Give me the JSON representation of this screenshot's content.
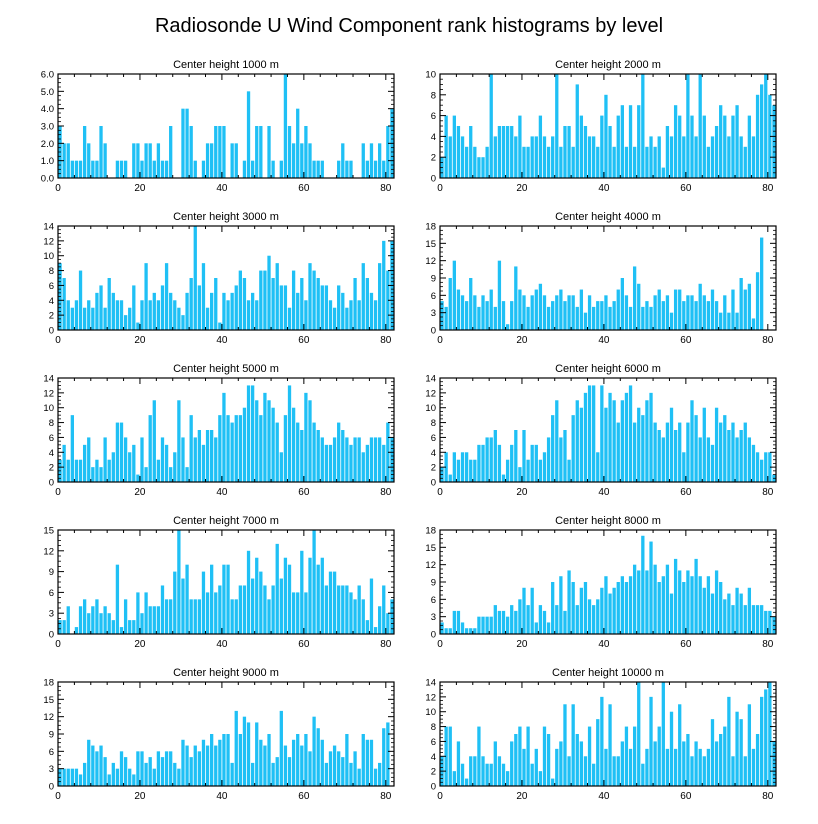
{
  "title": "Radiosonde U Wind Component rank histograms by level",
  "chart_data": [
    {
      "type": "bar",
      "title": "Center height 1000 m",
      "xlim": [
        0,
        82
      ],
      "ylim": [
        0,
        6
      ],
      "x_ticks": [
        0,
        20,
        40,
        60,
        80
      ],
      "y_ticks": [
        "0.0",
        "1.0",
        "2.0",
        "3.0",
        "4.0",
        "5.0",
        "6.0"
      ],
      "values": [
        3,
        2,
        2,
        1,
        1,
        1,
        3,
        2,
        1,
        1,
        3,
        2,
        0,
        0,
        1,
        1,
        1,
        0,
        2,
        2,
        1,
        2,
        2,
        1,
        2,
        1,
        1,
        3,
        0,
        0,
        4,
        4,
        3,
        1,
        0,
        1,
        2,
        2,
        3,
        3,
        3,
        0,
        2,
        2,
        0,
        1,
        5,
        1,
        3,
        3,
        0,
        3,
        1,
        0,
        1,
        6,
        3,
        2,
        4,
        2,
        3,
        2,
        1,
        1,
        1,
        0,
        0,
        0,
        1,
        2,
        1,
        1,
        0,
        0,
        2,
        1,
        2,
        1,
        2,
        1,
        3,
        4
      ]
    },
    {
      "type": "bar",
      "title": "Center height 2000 m",
      "xlim": [
        0,
        82
      ],
      "ylim": [
        0,
        10
      ],
      "x_ticks": [
        0,
        20,
        40,
        60,
        80
      ],
      "y_ticks": [
        "0",
        "2",
        "4",
        "6",
        "8",
        "10"
      ],
      "values": [
        2,
        6,
        4,
        6,
        5,
        4,
        3,
        5,
        3,
        2,
        2,
        3,
        10,
        4,
        5,
        5,
        5,
        5,
        4,
        6,
        3,
        3,
        4,
        4,
        6,
        4,
        3,
        4,
        10,
        3,
        5,
        5,
        3,
        9,
        6,
        5,
        4,
        4,
        3,
        6,
        8,
        5,
        3,
        6,
        7,
        3,
        7,
        3,
        7,
        10,
        3,
        4,
        3,
        4,
        1,
        5,
        4,
        7,
        6,
        4,
        10,
        6,
        4,
        10,
        6,
        3,
        4,
        5,
        7,
        6,
        4,
        6,
        7,
        4,
        3,
        6,
        4,
        8,
        9,
        10,
        8,
        7
      ]
    },
    {
      "type": "bar",
      "title": "Center height 3000 m",
      "xlim": [
        0,
        82
      ],
      "ylim": [
        0,
        14
      ],
      "x_ticks": [
        0,
        20,
        40,
        60,
        80
      ],
      "y_ticks": [
        "0",
        "2",
        "4",
        "6",
        "8",
        "10",
        "12",
        "14"
      ],
      "values": [
        9,
        7,
        4,
        3,
        4,
        8,
        3,
        4,
        3,
        5,
        6,
        3,
        7,
        5,
        4,
        4,
        2,
        3,
        6,
        1,
        4,
        9,
        4,
        5,
        4,
        6,
        9,
        5,
        4,
        3,
        2,
        5,
        7,
        14,
        6,
        9,
        3,
        5,
        7,
        1,
        5,
        4,
        5,
        6,
        8,
        7,
        4,
        5,
        4,
        8,
        8,
        10,
        7,
        9,
        6,
        6,
        3,
        8,
        5,
        7,
        4,
        9,
        8,
        7,
        6,
        6,
        4,
        3,
        6,
        5,
        3,
        4,
        7,
        4,
        9,
        7,
        5,
        4,
        9,
        12,
        8,
        12
      ]
    },
    {
      "type": "bar",
      "title": "Center height 4000 m",
      "xlim": [
        0,
        82
      ],
      "ylim": [
        0,
        18
      ],
      "x_ticks": [
        0,
        20,
        40,
        60,
        80
      ],
      "y_ticks": [
        "0",
        "3",
        "6",
        "9",
        "12",
        "15",
        "18"
      ],
      "values": [
        5,
        4,
        9,
        12,
        7,
        6,
        5,
        9,
        6,
        4,
        6,
        5,
        7,
        4,
        12,
        5,
        1,
        5,
        11,
        7,
        6,
        4,
        6,
        7,
        8,
        6,
        4,
        5,
        6,
        7,
        5,
        6,
        6,
        4,
        7,
        3,
        6,
        4,
        5,
        5,
        6,
        4,
        5,
        7,
        9,
        6,
        4,
        11,
        8,
        4,
        5,
        4,
        6,
        7,
        5,
        6,
        3,
        7,
        7,
        5,
        6,
        6,
        5,
        8,
        6,
        5,
        7,
        5,
        3,
        6,
        3,
        7,
        3,
        9,
        7,
        8,
        2,
        10,
        16
      ]
    },
    {
      "type": "bar",
      "title": "Center height 5000 m",
      "xlim": [
        0,
        82
      ],
      "ylim": [
        0,
        14
      ],
      "x_ticks": [
        0,
        20,
        40,
        60,
        80
      ],
      "y_ticks": [
        "0",
        "2",
        "4",
        "6",
        "8",
        "10",
        "12",
        "14"
      ],
      "values": [
        3,
        5,
        3,
        9,
        3,
        3,
        5,
        6,
        2,
        3,
        2,
        6,
        3,
        4,
        8,
        8,
        6,
        4,
        5,
        1,
        6,
        2,
        9,
        11,
        3,
        6,
        5,
        2,
        4,
        11,
        6,
        2,
        9,
        6,
        7,
        5,
        7,
        7,
        6,
        9,
        12,
        9,
        8,
        9,
        9,
        10,
        13,
        13,
        11,
        9,
        12,
        11,
        10,
        8,
        4,
        9,
        13,
        10,
        8,
        7,
        12,
        11,
        8,
        7,
        6,
        5,
        5,
        6,
        8,
        7,
        6,
        5,
        6,
        6,
        4,
        5,
        6,
        6,
        6,
        5,
        8,
        6
      ]
    },
    {
      "type": "bar",
      "title": "Center height 6000 m",
      "xlim": [
        0,
        82
      ],
      "ylim": [
        0,
        14
      ],
      "x_ticks": [
        0,
        20,
        40,
        60,
        80
      ],
      "y_ticks": [
        "0",
        "2",
        "4",
        "6",
        "8",
        "10",
        "12",
        "14"
      ],
      "values": [
        2,
        4,
        1,
        4,
        3,
        4,
        4,
        3,
        3,
        5,
        5,
        6,
        6,
        7,
        5,
        1,
        3,
        5,
        7,
        2,
        7,
        3,
        5,
        5,
        3,
        4,
        6,
        9,
        11,
        6,
        7,
        3,
        9,
        11,
        10,
        12,
        13,
        13,
        4,
        13,
        10,
        12,
        11,
        8,
        11,
        12,
        13,
        8,
        10,
        9,
        11,
        12,
        8,
        7,
        6,
        8,
        10,
        7,
        8,
        4,
        8,
        11,
        9,
        6,
        10,
        6,
        5,
        10,
        8,
        9,
        7,
        8,
        6,
        7,
        8,
        6,
        5,
        4,
        3,
        4,
        4,
        1
      ]
    },
    {
      "type": "bar",
      "title": "Center height 7000 m",
      "xlim": [
        0,
        82
      ],
      "ylim": [
        0,
        15
      ],
      "x_ticks": [
        0,
        20,
        40,
        60,
        80
      ],
      "y_ticks": [
        "0",
        "3",
        "6",
        "9",
        "12",
        "15"
      ],
      "values": [
        2,
        2,
        4,
        0,
        1,
        4,
        5,
        3,
        4,
        5,
        3,
        4,
        3,
        2,
        10,
        1,
        5,
        2,
        2,
        6,
        3,
        6,
        4,
        4,
        4,
        7,
        5,
        5,
        9,
        15,
        8,
        10,
        5,
        5,
        5,
        9,
        6,
        10,
        6,
        7,
        10,
        10,
        5,
        5,
        7,
        7,
        12,
        8,
        11,
        9,
        7,
        5,
        7,
        13,
        8,
        11,
        10,
        6,
        6,
        12,
        6,
        11,
        15,
        10,
        11,
        7,
        9,
        9,
        7,
        7,
        7,
        6,
        5,
        7,
        5,
        2,
        8,
        1,
        4,
        7,
        3,
        5
      ]
    },
    {
      "type": "bar",
      "title": "Center height 8000 m",
      "xlim": [
        0,
        82
      ],
      "ylim": [
        0,
        18
      ],
      "x_ticks": [
        0,
        20,
        40,
        60,
        80
      ],
      "y_ticks": [
        "0",
        "3",
        "6",
        "9",
        "12",
        "15",
        "18"
      ],
      "values": [
        2,
        1,
        1,
        4,
        4,
        2,
        1,
        1,
        1,
        3,
        3,
        3,
        3,
        5,
        4,
        4,
        3,
        5,
        4,
        6,
        8,
        5,
        8,
        2,
        5,
        4,
        2,
        9,
        5,
        10,
        4,
        11,
        9,
        5,
        8,
        9,
        6,
        5,
        6,
        8,
        10,
        7,
        8,
        9,
        10,
        9,
        10,
        12,
        11,
        17,
        11,
        16,
        12,
        9,
        10,
        12,
        7,
        13,
        11,
        9,
        11,
        10,
        13,
        10,
        8,
        10,
        7,
        11,
        9,
        6,
        7,
        5,
        8,
        7,
        5,
        8,
        5,
        5,
        5,
        4,
        4,
        3
      ]
    },
    {
      "type": "bar",
      "title": "Center height 9000 m",
      "xlim": [
        0,
        82
      ],
      "ylim": [
        0,
        18
      ],
      "x_ticks": [
        0,
        20,
        40,
        60,
        80
      ],
      "y_ticks": [
        "0",
        "3",
        "6",
        "9",
        "12",
        "15",
        "18"
      ],
      "values": [
        3,
        3,
        3,
        3,
        3,
        2,
        4,
        8,
        7,
        6,
        7,
        5,
        2,
        4,
        3,
        6,
        5,
        3,
        2,
        6,
        6,
        4,
        5,
        3,
        6,
        5,
        6,
        6,
        4,
        3,
        8,
        7,
        5,
        7,
        6,
        8,
        7,
        9,
        7,
        8,
        9,
        9,
        4,
        13,
        9,
        12,
        11,
        4,
        11,
        8,
        7,
        9,
        4,
        5,
        13,
        7,
        5,
        8,
        9,
        7,
        9,
        6,
        12,
        10,
        8,
        4,
        6,
        7,
        6,
        5,
        9,
        4,
        6,
        3,
        9,
        8,
        8,
        3,
        4,
        10,
        11
      ]
    },
    {
      "type": "bar",
      "title": "Center height 10000 m",
      "xlim": [
        0,
        82
      ],
      "ylim": [
        0,
        14
      ],
      "x_ticks": [
        0,
        20,
        40,
        60,
        80
      ],
      "y_ticks": [
        "0",
        "2",
        "4",
        "6",
        "8",
        "10",
        "12",
        "14"
      ],
      "values": [
        4,
        8,
        8,
        2,
        6,
        3,
        1,
        4,
        4,
        8,
        4,
        3,
        3,
        6,
        4,
        3,
        2,
        6,
        7,
        8,
        5,
        8,
        3,
        5,
        2,
        8,
        7,
        1,
        5,
        6,
        11,
        4,
        11,
        7,
        6,
        4,
        8,
        3,
        9,
        12,
        5,
        11,
        4,
        4,
        6,
        8,
        5,
        8,
        14,
        3,
        5,
        12,
        6,
        8,
        14,
        5,
        10,
        5,
        11,
        6,
        7,
        4,
        6,
        5,
        4,
        5,
        9,
        6,
        7,
        8,
        12,
        4,
        10,
        9,
        4,
        11,
        5,
        7,
        12,
        13,
        14,
        6
      ]
    }
  ]
}
